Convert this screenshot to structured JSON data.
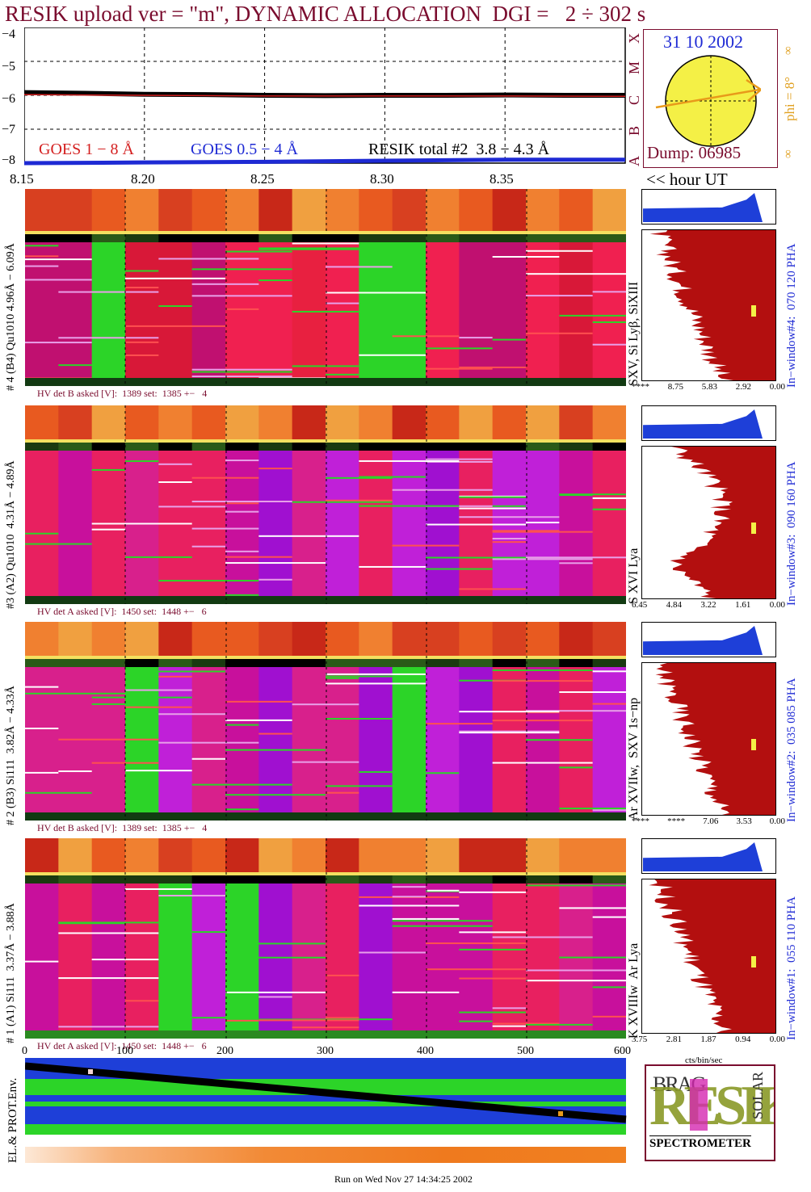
{
  "header": {
    "title": "RESIK upload ver = \"m\", DYNAMIC ALLOCATION  DGI =   2 ÷ 302 s",
    "date": "31 10 2002",
    "dump": "Dump: 06985",
    "phi": "phi = 8°",
    "phi_marks": [
      "∞",
      "∞"
    ],
    "class_letters": [
      "A",
      "B",
      "C",
      "M",
      "X"
    ]
  },
  "top_chart": {
    "y_ticks": [
      "−4",
      "−5",
      "−6",
      "−7",
      "−8"
    ],
    "legend": {
      "goes_1_8": "GOES 1 − 8 Å",
      "goes_05_4": "GOES 0.5 − 4 Å",
      "resik_total": "RESIK total #2  3.8 − 4.3 Å"
    },
    "x_ticks": [
      "8.15",
      "8.20",
      "8.25",
      "8.30",
      "8.35"
    ],
    "x_unit": "<< hour UT"
  },
  "channels": [
    {
      "label": "# 4 (B4) Qu1010 4.96Å − 6.09Å",
      "hv": "HV det B asked [V]:  1389 set:  1385 +−   4",
      "lines": "SXV, Si Lyβ, SiXIII",
      "window": "In−window#4:  070 120 PHA",
      "scale": [
        "****",
        "8.75",
        "5.83",
        "2.92",
        "0.00"
      ]
    },
    {
      "label": "#3 (A2) Qu1010  4.31Å − 4.89Å",
      "hv": "HV det A asked [V]:  1450 set:  1448 +−   6",
      "lines": "S XVI Lya",
      "window": "In−window#3:  090 160 PHA",
      "scale": [
        "6.45",
        "4.84",
        "3.22",
        "1.61",
        "0.00"
      ]
    },
    {
      "label": "# 2 (B3) Si111  3.82Å − 4.33Å",
      "hv": "HV det B asked [V]:  1389 set:  1385 +−   4",
      "lines": "Ar XVIIw,  SXV 1s−np",
      "window": "In−window#2:  035 085 PHA",
      "scale": [
        "****",
        "****",
        "7.06",
        "3.53",
        "0.00"
      ]
    },
    {
      "label": "# 1 (A1) Si111  3.37Å − 3.88Å",
      "hv": "HV det A asked [V]:  1450 set:  1448 +−   6",
      "lines": "K XVIIIw  Ar Lya",
      "window": "In−window#1:  055 110 PHA",
      "scale": [
        "3.75",
        "2.81",
        "1.87",
        "0.94",
        "0.00"
      ]
    }
  ],
  "spectrum_x_ticks": [
    "0",
    "100",
    "200",
    "300",
    "400",
    "500",
    "600"
  ],
  "cts_unit": "cts/bin/sec",
  "env_label": "EL.& PROT.Env.",
  "logo": {
    "big": "RESIK",
    "small": "BRAG",
    "solar": "SOLAR",
    "bottom": "SPECTROMETER"
  },
  "footer": "Run on Wed Nov 27 14:34:25 2002",
  "colors": {
    "title": "#7a0c2e",
    "goes_1_8": "#d42020",
    "goes_05_4": "#1e2ad4",
    "fill": "#b30f0f",
    "blue_fill": "#1e3fd8",
    "sun": "#f4f046",
    "orange": "#e89a1a"
  },
  "chart_data": [
    {
      "type": "line",
      "title": "RESIK upload ver = \"m\", DYNAMIC ALLOCATION  DGI =   2 ÷ 302 s",
      "xlabel": "<< hour UT",
      "ylabel": "",
      "ylim": [
        -8,
        -4
      ],
      "xlim": [
        8.15,
        8.4
      ],
      "series": [
        {
          "name": "RESIK total #2  3.8 − 4.3 Å",
          "x": [
            8.15,
            8.175,
            8.2,
            8.225,
            8.25,
            8.275,
            8.3,
            8.325,
            8.35,
            8.375,
            8.4
          ],
          "y": [
            -5.92,
            -5.94,
            -5.97,
            -5.98,
            -6.0,
            -6.01,
            -6.0,
            -6.0,
            -5.99,
            -6.0,
            -6.0
          ]
        },
        {
          "name": "GOES 1 − 8 Å",
          "x": [
            8.15,
            8.2,
            8.25,
            8.3,
            8.35,
            8.4
          ],
          "y": [
            -5.98,
            -6.0,
            -6.02,
            -6.02,
            -6.02,
            -6.03
          ]
        },
        {
          "name": "GOES 0.5 − 4 Å",
          "x": [
            8.15,
            8.2,
            8.25,
            8.3,
            8.35,
            8.4
          ],
          "y": [
            -8.0,
            -7.98,
            -7.96,
            -7.93,
            -7.9,
            -7.9
          ]
        }
      ]
    },
    {
      "type": "heatmap",
      "title": "",
      "xlabel": "",
      "ylabel": "",
      "xlim": [
        0,
        600
      ],
      "series": [
        {
          "name": "# 4 (B4) Qu1010 4.96Å − 6.09Å"
        },
        {
          "name": "#3 (A2) Qu1010  4.31Å − 4.89Å"
        },
        {
          "name": "# 2 (B3) Si111  3.82Å − 4.33Å"
        },
        {
          "name": "# 1 (A1) Si111  3.37Å − 3.88Å"
        }
      ]
    }
  ]
}
